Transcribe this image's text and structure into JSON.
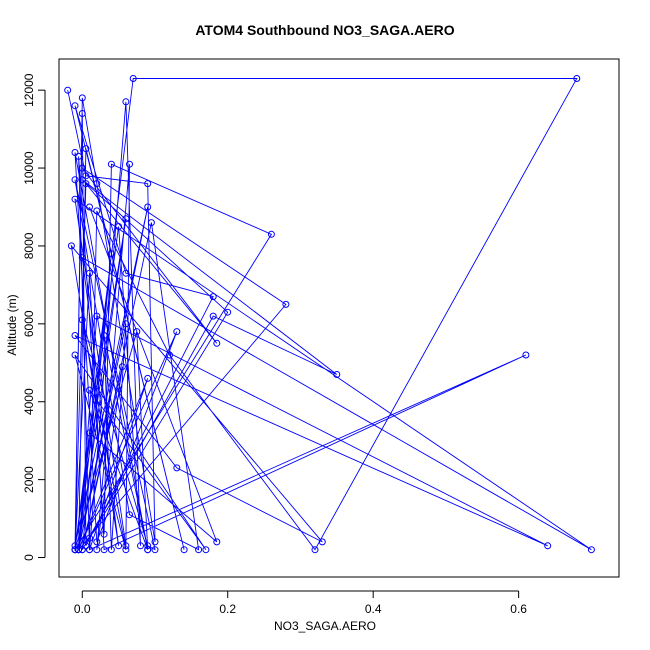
{
  "chart_data": {
    "type": "scatter",
    "title": "ATOM4 Southbound NO3_SAGA.AERO",
    "xlabel": "NO3_SAGA.AERO",
    "ylabel": "Altitude (m)",
    "xlim": [
      -0.032,
      0.738
    ],
    "ylim": [
      -500,
      12800
    ],
    "x_ticks": [
      0.0,
      0.2,
      0.4,
      0.6
    ],
    "x_tick_labels": [
      "0.0",
      "0.2",
      "0.4",
      "0.6"
    ],
    "y_ticks": [
      0,
      2000,
      4000,
      6000,
      8000,
      10000,
      12000
    ],
    "y_tick_labels": [
      "0",
      "2000",
      "4000",
      "6000",
      "8000",
      "10000",
      "12000"
    ],
    "grid": false,
    "connected": true,
    "color": "#0000FF",
    "marker": "open-circle",
    "series": [
      {
        "x": [
          -0.02,
          0.005,
          0.09,
          0.1,
          0.02,
          0.0,
          -0.01,
          0.05,
          0.08,
          0.06,
          0.01,
          -0.005,
          0.03,
          0.04,
          0.26,
          -0.01,
          0.0,
          0.005,
          0.18,
          0.06,
          -0.01,
          0.14,
          0.005,
          -0.005,
          0.13,
          0.02,
          -0.01,
          0.09,
          0.075,
          -0.01,
          0.005,
          0.185,
          0.0,
          0.28,
          -0.005,
          0.09,
          -0.01,
          0.06,
          -0.005,
          0.04,
          0.0,
          0.18,
          0.35,
          0.0,
          0.2,
          0.01,
          0.02,
          0.12,
          0.32,
          0.68,
          0.07,
          -0.01,
          0.01,
          0.03,
          0.61,
          0.01,
          0.09,
          -0.005,
          0.02,
          0.64,
          -0.01,
          0.13,
          0.33,
          -0.015,
          0.05,
          0.0,
          0.7,
          -0.01,
          0.06,
          0.065,
          0.02,
          0.055,
          0.0,
          0.095,
          0.16,
          0.065,
          -0.01,
          0.1,
          0.09,
          0.0,
          0.06,
          -0.01,
          0.17,
          0.01,
          0.09,
          0.03,
          0.04,
          0.06,
          -0.005,
          0.01,
          0.185,
          0.01
        ],
        "y": [
          12000,
          9800,
          9600,
          400,
          9600,
          11800,
          200,
          8500,
          300,
          11700,
          200,
          10300,
          600,
          10100,
          8300,
          200,
          11400,
          300,
          6700,
          7300,
          11600,
          200,
          10500,
          200,
          5800,
          400,
          10400,
          200,
          5800,
          200,
          9600,
          5500,
          10000,
          6500,
          200,
          9000,
          300,
          8700,
          200,
          7800,
          200,
          6200,
          4700,
          9700,
          6300,
          500,
          8900,
          5200,
          200,
          12300,
          12300,
          200,
          7300,
          200,
          5200,
          200,
          4600,
          200,
          6200,
          300,
          5700,
          2300,
          400,
          8000,
          300,
          7700,
          200,
          9200,
          300,
          10100,
          200,
          4900,
          200,
          8600,
          200,
          1100,
          9700,
          200,
          300,
          6100,
          200,
          5200,
          200,
          4300,
          200,
          5700,
          200,
          6000,
          200,
          3200,
          400,
          9000
        ]
      }
    ]
  }
}
